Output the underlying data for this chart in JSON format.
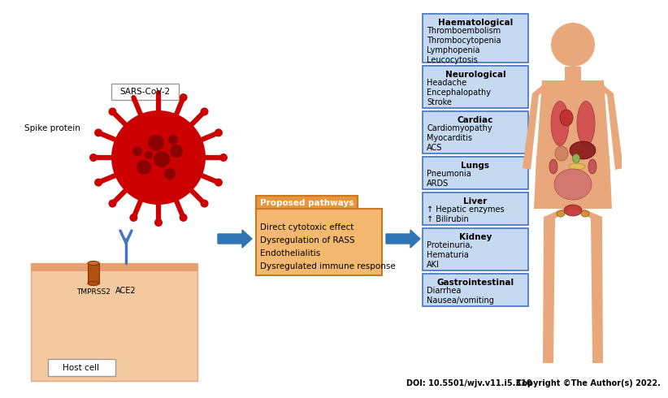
{
  "doi_text": "DOI: 10.5501/wjv.v11.i5.310",
  "copyright_text": "Copyright ©The Author(s) 2022.",
  "sars_label": "SARS-CoV-2",
  "spike_label": "Spike protein",
  "tmprss2_label": "TMPRSS2",
  "ace2_label": "ACE2",
  "host_cell_label": "Host cell",
  "proposed_pathways_title": "Proposed pathways",
  "proposed_pathways_items": [
    "Direct cytotoxic effect",
    "Dysregulation of RASS",
    "Endothelialitis",
    "Dysregulated immune response"
  ],
  "boxes": [
    {
      "title": "Haematological",
      "items": [
        "Thromboembolism",
        "Thrombocytopenia",
        "Lymphopenia",
        "Leucocytosis"
      ]
    },
    {
      "title": "Neurological",
      "items": [
        "Headache",
        "Encephalopathy",
        "Stroke"
      ]
    },
    {
      "title": "Cardiac",
      "items": [
        "Cardiomyopathy",
        "Myocarditis",
        "ACS"
      ]
    },
    {
      "title": "Lungs",
      "items": [
        "Pneumonia",
        "ARDS"
      ]
    },
    {
      "title": "Liver",
      "items": [
        "↑ Hepatic enzymes",
        "↑ Bilirubin"
      ]
    },
    {
      "title": "Kidney",
      "items": [
        "Proteinuria,",
        "Hematuria",
        "AKI"
      ]
    },
    {
      "title": "Gastrointestinal",
      "items": [
        "Diarrhea",
        "Nausea/vomiting"
      ]
    }
  ],
  "box_border_color": "#4472C4",
  "box_bg_color": "#C5D9F1",
  "arrow_color": "#2E75B6",
  "virus_color": "#CC0000",
  "virus_dark": "#8B0000",
  "host_cell_top": "#E8A070",
  "host_cell_body": "#F5C9A0",
  "ace2_receptor_color": "#4472C4",
  "tmprss2_color": "#B05010",
  "pathway_bg": "#E8963C",
  "pathway_border": "#CC7722",
  "body_silhouette_color": "#E8A87C",
  "organ_lung_color": "#D05050",
  "organ_liver_color": "#8B2020",
  "organ_heart_color": "#C03030",
  "organ_kidney_color": "#C05050",
  "organ_intestine_color": "#D07070",
  "organ_gallbladder_color": "#90B050",
  "organ_uterus_color": "#C03030",
  "organ_ovary_color": "#D09030",
  "organ_pancreas_color": "#E0C050"
}
